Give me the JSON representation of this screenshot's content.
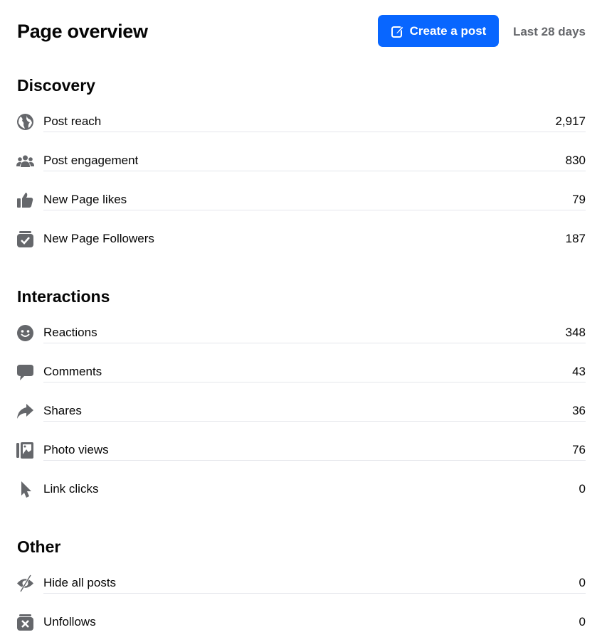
{
  "header": {
    "title": "Page overview",
    "create_post_label": "Create a post",
    "date_range": "Last 28 days"
  },
  "colors": {
    "accent": "#0866ff",
    "icon": "#65676b",
    "divider": "#e4e6eb"
  },
  "sections": [
    {
      "title": "Discovery",
      "rows": [
        {
          "icon": "globe-icon",
          "label": "Post reach",
          "value": "2,917"
        },
        {
          "icon": "people-icon",
          "label": "Post engagement",
          "value": "830"
        },
        {
          "icon": "thumbs-up-icon",
          "label": "New Page likes",
          "value": "79"
        },
        {
          "icon": "follow-check-icon",
          "label": "New Page Followers",
          "value": "187"
        }
      ]
    },
    {
      "title": "Interactions",
      "rows": [
        {
          "icon": "smiley-icon",
          "label": "Reactions",
          "value": "348"
        },
        {
          "icon": "comment-icon",
          "label": "Comments",
          "value": "43"
        },
        {
          "icon": "share-icon",
          "label": "Shares",
          "value": "36"
        },
        {
          "icon": "photo-icon",
          "label": "Photo views",
          "value": "76"
        },
        {
          "icon": "cursor-icon",
          "label": "Link clicks",
          "value": "0"
        }
      ]
    },
    {
      "title": "Other",
      "rows": [
        {
          "icon": "eye-slash-icon",
          "label": "Hide all posts",
          "value": "0"
        },
        {
          "icon": "unfollow-icon",
          "label": "Unfollows",
          "value": "0"
        }
      ]
    }
  ]
}
